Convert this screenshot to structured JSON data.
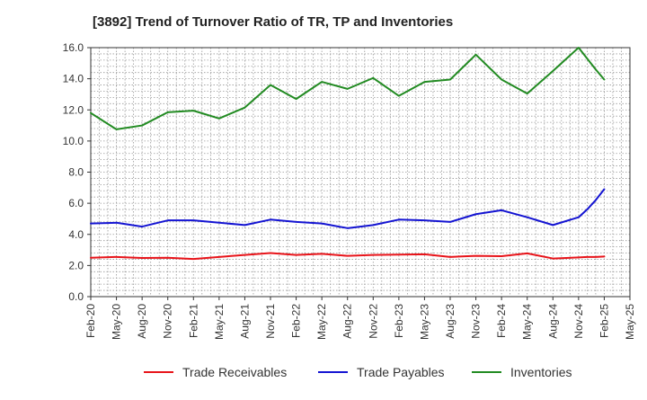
{
  "chart_data": {
    "type": "line",
    "title": "[3892]  Trend of Turnover Ratio of TR, TP and Inventories",
    "xlabel": "",
    "ylabel": "",
    "ylim": [
      0,
      16
    ],
    "yticks": [
      "0.0",
      "2.0",
      "4.0",
      "6.0",
      "8.0",
      "10.0",
      "12.0",
      "14.0",
      "16.0"
    ],
    "x_tick_labels": [
      "Feb-20",
      "May-20",
      "Aug-20",
      "Nov-20",
      "Feb-21",
      "May-21",
      "Aug-21",
      "Nov-21",
      "Feb-22",
      "May-22",
      "Aug-22",
      "Nov-22",
      "Feb-23",
      "May-23",
      "Aug-23",
      "Nov-23",
      "Feb-24",
      "May-24",
      "Aug-24",
      "Nov-24",
      "Feb-25",
      "May-25"
    ],
    "x": [
      "2020-02",
      "2020-05",
      "2020-08",
      "2020-11",
      "2021-02",
      "2021-05",
      "2021-08",
      "2021-11",
      "2022-02",
      "2022-05",
      "2022-08",
      "2022-11",
      "2023-02",
      "2023-05",
      "2023-08",
      "2023-11",
      "2024-02",
      "2024-05",
      "2024-08",
      "2024-11",
      "2024-12",
      "2025-01",
      "2025-02"
    ],
    "grid": true,
    "legend_position": "bottom",
    "series": [
      {
        "name": "Trade Receivables",
        "color": "#e8141a",
        "values": [
          2.5,
          2.55,
          2.48,
          2.5,
          2.42,
          2.55,
          2.68,
          2.8,
          2.68,
          2.75,
          2.62,
          2.68,
          2.7,
          2.72,
          2.55,
          2.62,
          2.6,
          2.78,
          2.45,
          2.52,
          2.55,
          2.55,
          2.58
        ]
      },
      {
        "name": "Trade Payables",
        "color": "#1414d2",
        "values": [
          4.7,
          4.75,
          4.5,
          4.9,
          4.9,
          4.75,
          4.6,
          4.95,
          4.8,
          4.7,
          4.4,
          4.6,
          4.95,
          4.9,
          4.8,
          5.3,
          5.55,
          5.1,
          4.6,
          5.1,
          5.6,
          6.2,
          6.9
        ]
      },
      {
        "name": "Inventories",
        "color": "#228b22",
        "values": [
          11.8,
          10.75,
          11.0,
          11.85,
          11.95,
          11.45,
          12.15,
          13.6,
          12.7,
          13.8,
          13.35,
          14.05,
          12.9,
          13.8,
          13.95,
          15.55,
          13.95,
          13.05,
          14.5,
          16.0,
          15.3,
          14.6,
          13.95
        ]
      }
    ]
  }
}
